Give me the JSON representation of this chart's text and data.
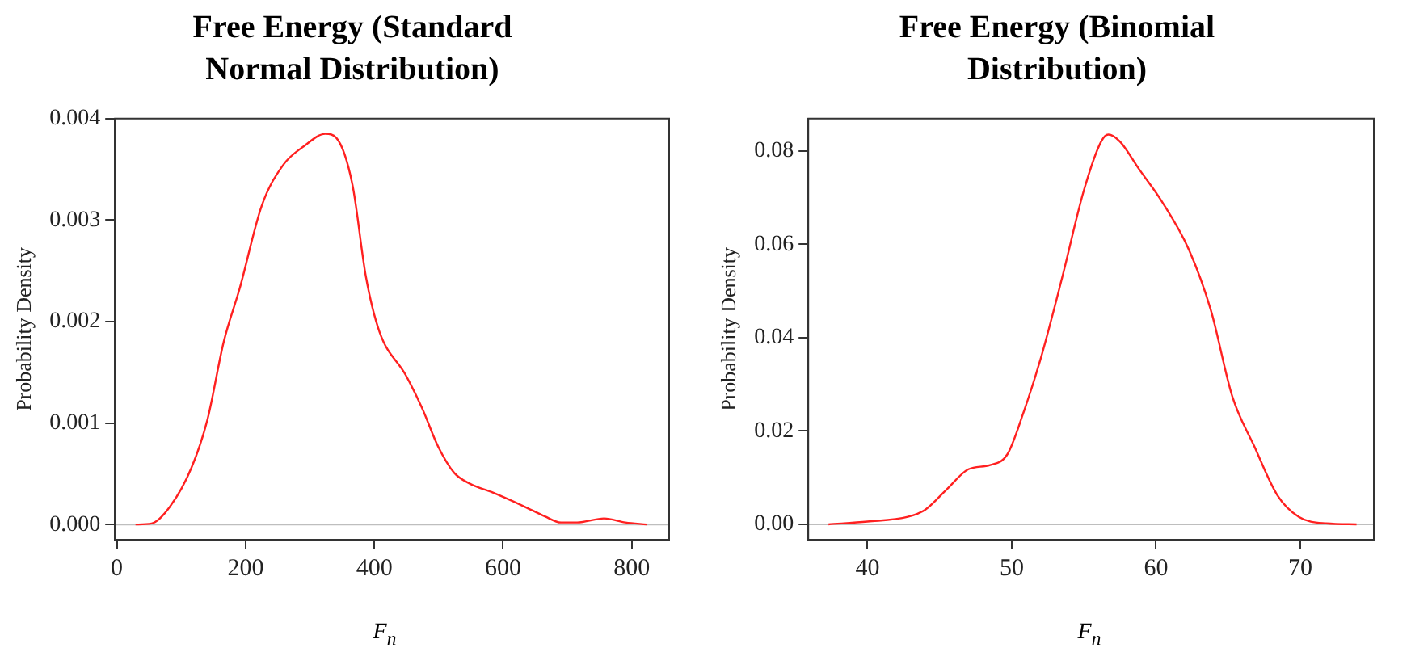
{
  "chart_data": [
    {
      "type": "line",
      "title": "Free Energy (Standard Normal Distribution)",
      "xlabel": "F$_{n}$",
      "ylabel": "Probability Density",
      "color": "#ff2020",
      "marker": "none",
      "legend": false,
      "grid": false,
      "x": [
        29,
        54,
        83,
        116,
        141,
        166,
        191,
        225,
        258,
        291,
        324,
        341,
        366,
        387,
        408,
        449,
        474,
        499,
        524,
        549,
        582,
        632,
        665,
        690,
        715,
        757,
        790,
        823
      ],
      "values": [
        0,
        1e-05,
        0.00018,
        0.00056,
        0.00104,
        0.0018,
        0.00233,
        0.00314,
        0.00354,
        0.00373,
        0.00385,
        0.00381,
        0.00335,
        0.00244,
        0.0019,
        0.00147,
        0.00115,
        0.00077,
        0.00051,
        0.0004,
        0.00032,
        0.00018,
        8e-05,
        2e-05,
        2e-05,
        6e-05,
        2e-05,
        0
      ],
      "xlim": [
        -3,
        858
      ],
      "xticks": [
        0,
        200,
        400,
        600,
        800
      ],
      "ylim": [
        -0.00015,
        0.004
      ],
      "yticks": [
        {
          "value": 0,
          "label": "0.000"
        },
        {
          "value": 0.001,
          "label": "0.001"
        },
        {
          "value": 0.002,
          "label": "0.002"
        },
        {
          "value": 0.003,
          "label": "0.003"
        },
        {
          "value": 0.004,
          "label": "0.004"
        }
      ],
      "ref_lines": [
        {
          "axis": "y",
          "value": 0,
          "color": "#bebebe"
        }
      ]
    },
    {
      "type": "line",
      "title": "Free Energy (Binomial Distribution)",
      "xlabel": "F$_{n}$",
      "ylabel": "Probability Density",
      "color": "#ff2020",
      "marker": "none",
      "legend": false,
      "grid": false,
      "x": [
        37.3,
        40,
        42.8,
        44,
        45.5,
        47,
        48.5,
        49.7,
        50.8,
        52,
        53.5,
        55,
        56.2,
        56.7,
        57.5,
        58.8,
        60.4,
        62.3,
        63.8,
        65.3,
        66.8,
        68.4,
        69.9,
        71.8,
        73.9
      ],
      "values": [
        0,
        0.0006,
        0.0016,
        0.0031,
        0.0075,
        0.0118,
        0.0127,
        0.015,
        0.0238,
        0.0354,
        0.0529,
        0.0715,
        0.082,
        0.0835,
        0.082,
        0.0762,
        0.0692,
        0.0587,
        0.0459,
        0.0273,
        0.0168,
        0.0063,
        0.0016,
        0.0002,
        0
      ],
      "xlim": [
        35.9,
        75.1
      ],
      "xticks": [
        40,
        50,
        60,
        70
      ],
      "ylim": [
        -0.0033,
        0.0869
      ],
      "yticks": [
        {
          "value": 0,
          "label": "0.00"
        },
        {
          "value": 0.02,
          "label": "0.02"
        },
        {
          "value": 0.04,
          "label": "0.04"
        },
        {
          "value": 0.06,
          "label": "0.06"
        },
        {
          "value": 0.08,
          "label": "0.08"
        }
      ],
      "ref_lines": [
        {
          "axis": "y",
          "value": 0,
          "color": "#bebebe"
        }
      ]
    }
  ]
}
